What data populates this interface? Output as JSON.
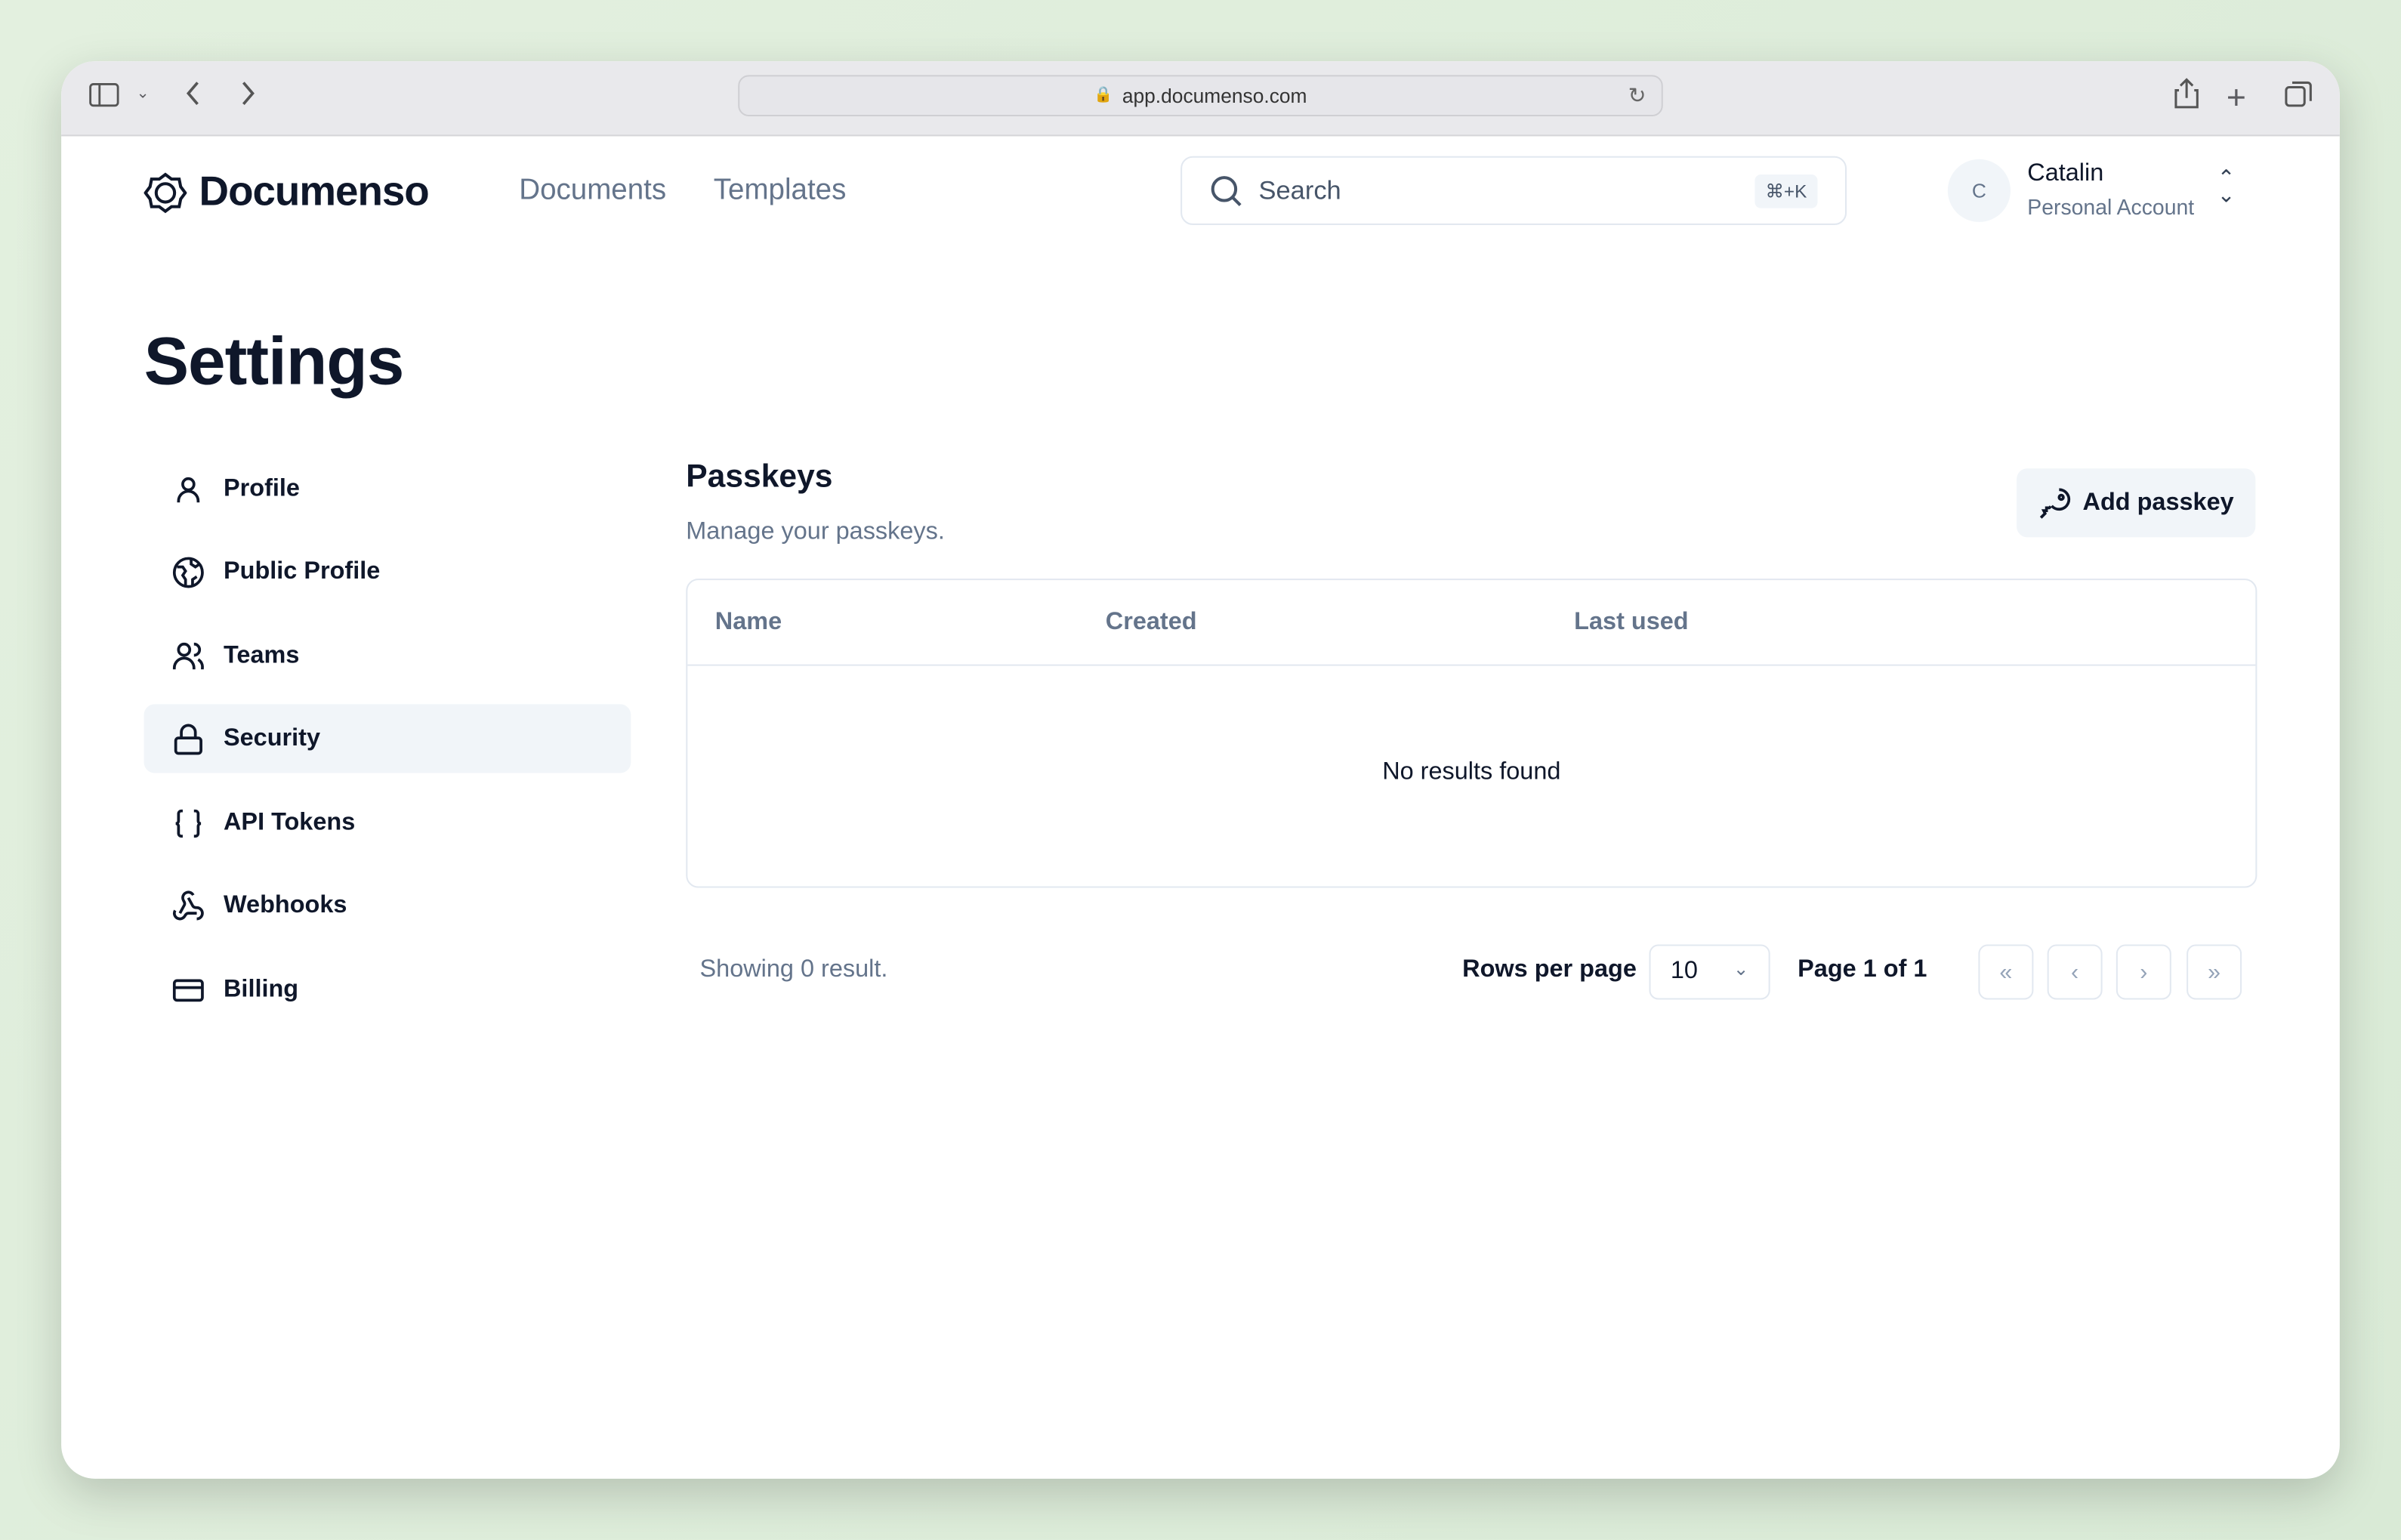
{
  "browser": {
    "url": "app.documenso.com"
  },
  "header": {
    "logo": "Documenso",
    "nav": [
      "Documents",
      "Templates"
    ],
    "search_placeholder": "Search",
    "search_shortcut": "⌘+K",
    "user": {
      "initial": "C",
      "name": "Catalin",
      "account": "Personal Account"
    }
  },
  "page": {
    "title": "Settings"
  },
  "sidebar": {
    "active": "Security",
    "items": [
      {
        "label": "Profile",
        "icon": "user-icon"
      },
      {
        "label": "Public Profile",
        "icon": "globe-icon"
      },
      {
        "label": "Teams",
        "icon": "users-icon"
      },
      {
        "label": "Security",
        "icon": "lock-icon"
      },
      {
        "label": "API Tokens",
        "icon": "braces-icon"
      },
      {
        "label": "Webhooks",
        "icon": "webhook-icon"
      },
      {
        "label": "Billing",
        "icon": "credit-card-icon"
      }
    ]
  },
  "main": {
    "title": "Passkeys",
    "subtitle": "Manage your passkeys.",
    "add_button": "Add passkey",
    "table": {
      "columns": [
        "Name",
        "Created",
        "Last used"
      ],
      "empty": "No results found"
    },
    "pagination": {
      "showing": "Showing 0 result.",
      "rows_label": "Rows per page",
      "rows_value": "10",
      "page": "Page 1 of 1"
    }
  }
}
